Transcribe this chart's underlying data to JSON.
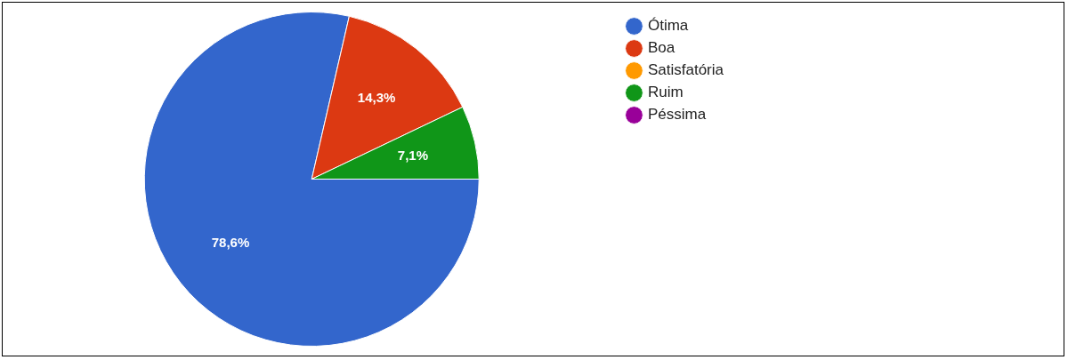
{
  "chart_data": {
    "type": "pie",
    "categories": [
      "Ótima",
      "Boa",
      "Satisfatória",
      "Ruim",
      "Péssima"
    ],
    "values": [
      78.6,
      14.3,
      0,
      7.1,
      0
    ],
    "colors": [
      "#3366cc",
      "#dc3912",
      "#ff9900",
      "#109618",
      "#990099"
    ],
    "value_labels": [
      "78,6%",
      "14,3%",
      null,
      "7,1%",
      null
    ],
    "legend": "top right"
  }
}
